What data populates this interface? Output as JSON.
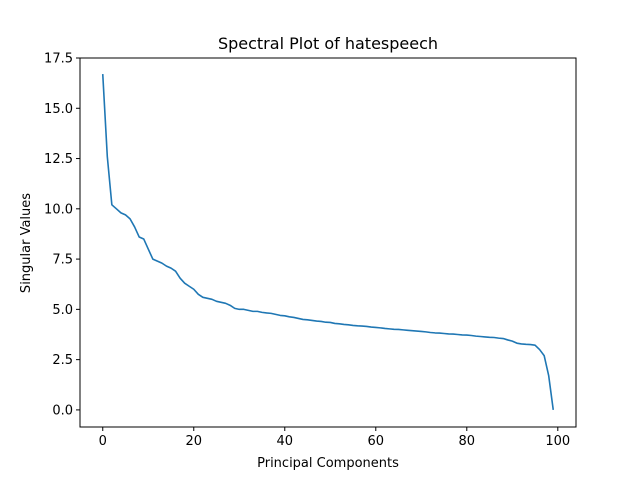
{
  "chart_data": {
    "type": "line",
    "title": "Spectral Plot of hatespeech",
    "xlabel": "Principal Components",
    "ylabel": "Singular Values",
    "xlim": [
      -5,
      104
    ],
    "ylim": [
      -0.85,
      17.5
    ],
    "xticks": [
      0,
      20,
      40,
      60,
      80,
      100
    ],
    "xtick_labels": [
      "0",
      "20",
      "40",
      "60",
      "80",
      "100"
    ],
    "yticks": [
      0.0,
      2.5,
      5.0,
      7.5,
      10.0,
      12.5,
      15.0,
      17.5
    ],
    "ytick_labels": [
      "0.0",
      "2.5",
      "5.0",
      "7.5",
      "10.0",
      "12.5",
      "15.0",
      "17.5"
    ],
    "grid": false,
    "series": [
      {
        "color": "#1f77b4",
        "x": [
          0,
          1,
          2,
          3,
          4,
          5,
          6,
          7,
          8,
          9,
          10,
          11,
          12,
          13,
          14,
          15,
          16,
          17,
          18,
          19,
          20,
          21,
          22,
          23,
          24,
          25,
          26,
          27,
          28,
          29,
          30,
          31,
          32,
          33,
          34,
          35,
          36,
          37,
          38,
          39,
          40,
          41,
          42,
          43,
          44,
          45,
          46,
          47,
          48,
          49,
          50,
          51,
          52,
          53,
          54,
          55,
          56,
          57,
          58,
          59,
          60,
          61,
          62,
          63,
          64,
          65,
          66,
          67,
          68,
          69,
          70,
          71,
          72,
          73,
          74,
          75,
          76,
          77,
          78,
          79,
          80,
          81,
          82,
          83,
          84,
          85,
          86,
          87,
          88,
          89,
          90,
          91,
          92,
          93,
          94,
          95,
          96,
          97,
          98,
          99
        ],
        "y": [
          16.7,
          12.6,
          10.2,
          10.0,
          9.8,
          9.7,
          9.5,
          9.1,
          8.6,
          8.5,
          8.0,
          7.5,
          7.4,
          7.3,
          7.15,
          7.05,
          6.9,
          6.55,
          6.3,
          6.15,
          6.0,
          5.75,
          5.6,
          5.55,
          5.5,
          5.4,
          5.35,
          5.3,
          5.2,
          5.05,
          5.0,
          5.0,
          4.95,
          4.9,
          4.9,
          4.85,
          4.82,
          4.8,
          4.75,
          4.7,
          4.68,
          4.63,
          4.6,
          4.55,
          4.5,
          4.48,
          4.45,
          4.42,
          4.4,
          4.36,
          4.35,
          4.3,
          4.28,
          4.25,
          4.23,
          4.2,
          4.18,
          4.17,
          4.15,
          4.12,
          4.1,
          4.08,
          4.05,
          4.03,
          4.01,
          4.0,
          3.98,
          3.96,
          3.94,
          3.92,
          3.9,
          3.88,
          3.85,
          3.83,
          3.82,
          3.8,
          3.78,
          3.77,
          3.75,
          3.73,
          3.72,
          3.7,
          3.67,
          3.65,
          3.63,
          3.61,
          3.6,
          3.57,
          3.55,
          3.48,
          3.42,
          3.32,
          3.28,
          3.26,
          3.25,
          3.22,
          3.0,
          2.7,
          1.7,
          0.0
        ]
      }
    ]
  }
}
